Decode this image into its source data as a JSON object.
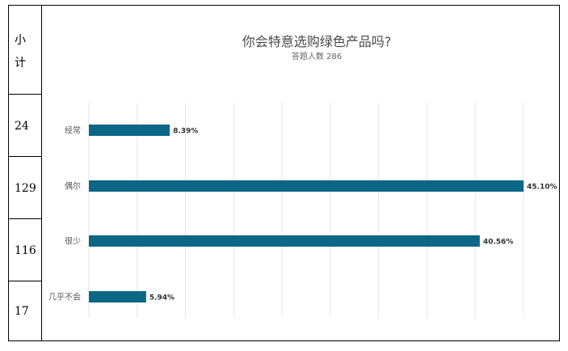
{
  "table": {
    "header_line1": "小",
    "header_line2": "计",
    "counts": [
      "24",
      "129",
      "116",
      "17"
    ]
  },
  "colors": {
    "bar": "#0b6785"
  },
  "chart_data": {
    "type": "bar",
    "orientation": "horizontal",
    "title": "你会特意选购绿色产品吗?",
    "subtitle": "答题人数 286",
    "categories": [
      "经常",
      "偶尔",
      "很少",
      "几乎不会"
    ],
    "values": [
      8.39,
      45.1,
      40.56,
      5.94
    ],
    "value_labels": [
      "8.39%",
      "45.10%",
      "40.56%",
      "5.94%"
    ],
    "unit": "%",
    "xlim": [
      0,
      45.1
    ],
    "grid": true,
    "legend": "none"
  }
}
